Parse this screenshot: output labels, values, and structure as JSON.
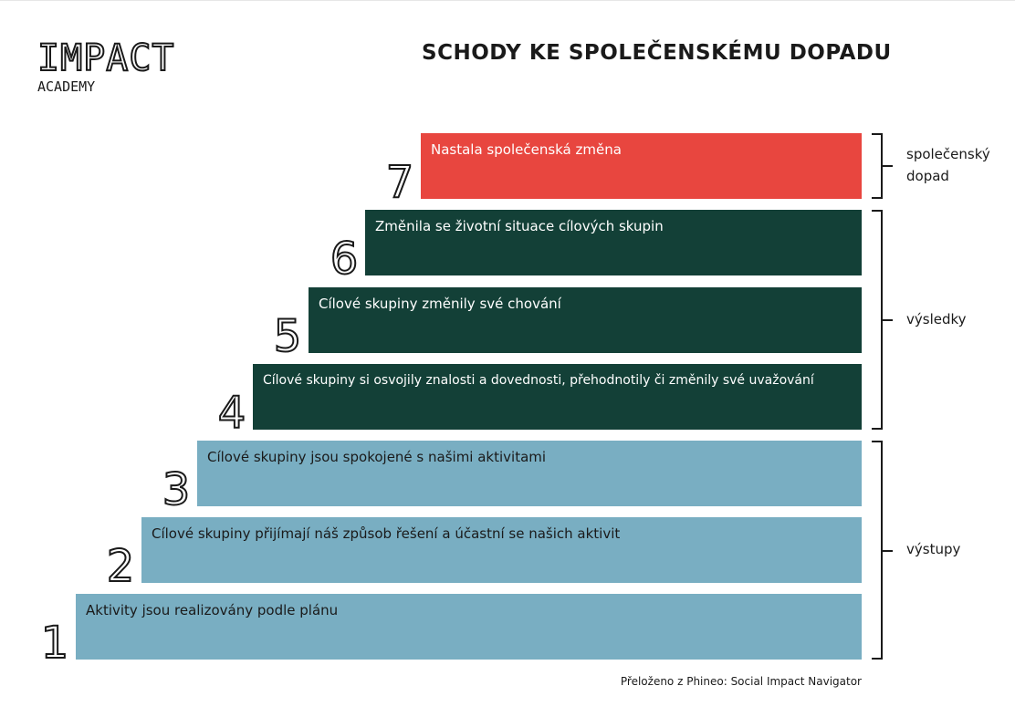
{
  "logo": {
    "main": "IMPACT",
    "sub": "ACADEMY"
  },
  "title": "SCHODY KE SPOLEČENSKÉMU DOPADU",
  "colors": {
    "impact": "#e8463f",
    "outcome": "#134037",
    "output": "#79aec2",
    "ink": "#1a1a1a"
  },
  "steps": [
    {
      "number": "1",
      "label": "Aktivity jsou realizovány podle plánu",
      "category": "output"
    },
    {
      "number": "2",
      "label": "Cílové skupiny přijímají náš způsob řešení a účastní se našich aktivit",
      "category": "output"
    },
    {
      "number": "3",
      "label": "Cílové skupiny jsou spokojené s našimi aktivitami",
      "category": "output"
    },
    {
      "number": "4",
      "label": "Cílové skupiny si osvojily znalosti a dovednosti, přehodnotily či změnily své uvažování",
      "category": "outcome"
    },
    {
      "number": "5",
      "label": "Cílové skupiny změnily své chování",
      "category": "outcome"
    },
    {
      "number": "6",
      "label": "Změnila se životní situace cílových skupin",
      "category": "outcome"
    },
    {
      "number": "7",
      "label": "Nastala společenská změna",
      "category": "impact"
    }
  ],
  "groups": {
    "impact": "společenský dopad",
    "outcomes": "výsledky",
    "outputs": "výstupy"
  },
  "source": "Přeloženo z Phineo: Social Impact Navigator"
}
